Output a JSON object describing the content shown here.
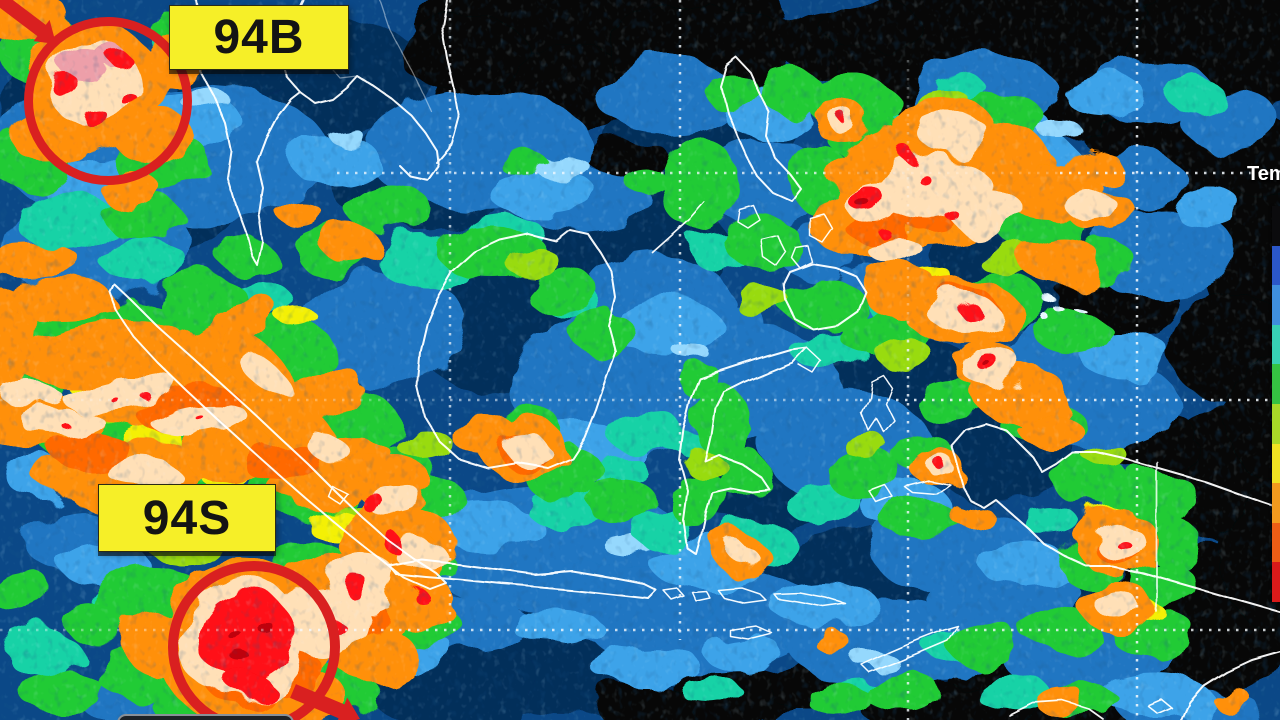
{
  "annotations": {
    "storm_top": {
      "label": "94B"
    },
    "storm_bottom": {
      "label": "94S"
    }
  },
  "colorbar": {
    "title": "Tem",
    "colors": [
      "#0b0b0d",
      "#2b57c8",
      "#3f8fdd",
      "#37d0b4",
      "#35c242",
      "#a8d828",
      "#efe222",
      "#f29a1e",
      "#ec5d15",
      "#d91a1a"
    ]
  },
  "palette": {
    "annotation_red": "#d92020",
    "label_bg": "#f6ef28",
    "label_text": "#141414",
    "coastline": "#ffffff",
    "ocean_base": "#174a7e"
  }
}
